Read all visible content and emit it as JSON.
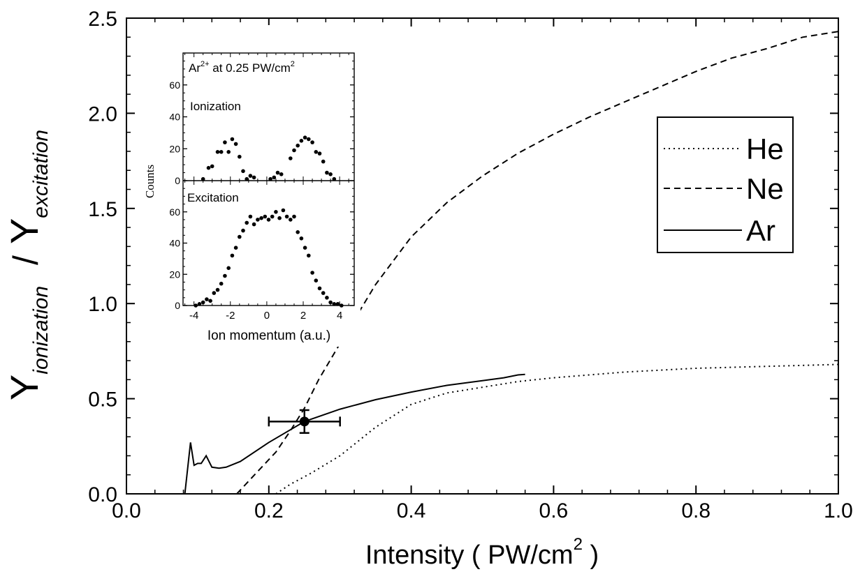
{
  "chart_data": [
    {
      "id": "main",
      "type": "line",
      "xlabel": "Intensity ( PW/cm",
      "xlabel_sup": "2",
      "xlabel_end": " )",
      "ylabel_Y1": "Y",
      "ylabel_sub1": "ionization",
      "ylabel_slash": "/",
      "ylabel_Y2": "Y",
      "ylabel_sub2": "excitation",
      "xlim": [
        0,
        1
      ],
      "ylim": [
        0,
        2.5
      ],
      "x_ticks": [
        0.0,
        0.2,
        0.4,
        0.6,
        0.8,
        1.0
      ],
      "x_tick_labels": [
        "0.0",
        "0.2",
        "0.4",
        "0.6",
        "0.8",
        "1.0"
      ],
      "y_ticks": [
        0.0,
        0.5,
        1.0,
        1.5,
        2.0,
        2.5
      ],
      "y_tick_labels": [
        "0.0",
        "0.5",
        "1.0",
        "1.5",
        "2.0",
        "2.5"
      ],
      "legend_position": "right",
      "series": [
        {
          "name": "He",
          "style": "dotted",
          "points": [
            [
              0.21,
              0
            ],
            [
              0.23,
              0.05
            ],
            [
              0.26,
              0.11
            ],
            [
              0.3,
              0.2
            ],
            [
              0.35,
              0.35
            ],
            [
              0.4,
              0.47
            ],
            [
              0.45,
              0.53
            ],
            [
              0.5,
              0.56
            ],
            [
              0.55,
              0.59
            ],
            [
              0.6,
              0.61
            ],
            [
              0.7,
              0.64
            ],
            [
              0.8,
              0.66
            ],
            [
              0.9,
              0.67
            ],
            [
              1.0,
              0.68
            ]
          ]
        },
        {
          "name": "Ne",
          "style": "dashed",
          "points": [
            [
              0.155,
              0
            ],
            [
              0.18,
              0.1
            ],
            [
              0.21,
              0.22
            ],
            [
              0.23,
              0.33
            ],
            [
              0.25,
              0.45
            ],
            [
              0.27,
              0.6
            ],
            [
              0.3,
              0.79
            ],
            [
              0.35,
              1.1
            ],
            [
              0.4,
              1.35
            ],
            [
              0.45,
              1.53
            ],
            [
              0.5,
              1.67
            ],
            [
              0.55,
              1.79
            ],
            [
              0.6,
              1.89
            ],
            [
              0.65,
              1.98
            ],
            [
              0.7,
              2.06
            ],
            [
              0.75,
              2.14
            ],
            [
              0.8,
              2.22
            ],
            [
              0.85,
              2.29
            ],
            [
              0.9,
              2.34
            ],
            [
              0.95,
              2.4
            ],
            [
              1.0,
              2.43
            ]
          ]
        },
        {
          "name": "Ar",
          "style": "solid",
          "points": [
            [
              0.082,
              0
            ],
            [
              0.09,
              0.27
            ],
            [
              0.095,
              0.15
            ],
            [
              0.1,
              0.16
            ],
            [
              0.105,
              0.16
            ],
            [
              0.112,
              0.2
            ],
            [
              0.12,
              0.14
            ],
            [
              0.13,
              0.135
            ],
            [
              0.14,
              0.14
            ],
            [
              0.16,
              0.17
            ],
            [
              0.2,
              0.27
            ],
            [
              0.25,
              0.38
            ],
            [
              0.3,
              0.445
            ],
            [
              0.35,
              0.495
            ],
            [
              0.4,
              0.535
            ],
            [
              0.45,
              0.57
            ],
            [
              0.5,
              0.595
            ],
            [
              0.53,
              0.61
            ],
            [
              0.55,
              0.625
            ],
            [
              0.56,
              0.628
            ]
          ]
        }
      ],
      "errorbar_point": {
        "x": 0.25,
        "y": 0.38,
        "xerr": 0.05,
        "yerr": 0.06
      }
    },
    {
      "id": "inset",
      "type": "scatter",
      "annotation_base": "Ar",
      "annotation_sup": "2+",
      "annotation_mid": " at  0.25 PW/cm",
      "annotation_sup2": "2",
      "ylabel": "Counts",
      "xlabel": "Ion momentum (a.u.)",
      "xlim": [
        -4.6,
        4.8
      ],
      "x_ticks": [
        -4,
        -2,
        0,
        2,
        4
      ],
      "x_tick_labels": [
        "-4",
        "-2",
        "0",
        "2",
        "4"
      ],
      "panels": [
        {
          "name": "Ionization",
          "ylim": [
            0,
            80
          ],
          "y_ticks": [
            0,
            20,
            40,
            60
          ],
          "y_tick_labels": [
            "0",
            "20",
            "40",
            "60"
          ],
          "points": [
            [
              -3.5,
              1
            ],
            [
              -3.2,
              8
            ],
            [
              -3.0,
              9
            ],
            [
              -2.7,
              18
            ],
            [
              -2.5,
              18
            ],
            [
              -2.3,
              24
            ],
            [
              -2.1,
              18
            ],
            [
              -1.9,
              26
            ],
            [
              -1.7,
              23
            ],
            [
              -1.5,
              15
            ],
            [
              -1.3,
              6
            ],
            [
              -1.1,
              1
            ],
            [
              -0.9,
              3
            ],
            [
              -0.7,
              2
            ],
            [
              0.2,
              1
            ],
            [
              0.4,
              2
            ],
            [
              0.6,
              5
            ],
            [
              0.8,
              4
            ],
            [
              1.3,
              14
            ],
            [
              1.5,
              19
            ],
            [
              1.7,
              22
            ],
            [
              1.9,
              25
            ],
            [
              2.1,
              27
            ],
            [
              2.3,
              26
            ],
            [
              2.5,
              24
            ],
            [
              2.7,
              18
            ],
            [
              2.9,
              17
            ],
            [
              3.1,
              12
            ],
            [
              3.3,
              5
            ],
            [
              3.5,
              4
            ],
            [
              3.7,
              1
            ]
          ]
        },
        {
          "name": "Excitation",
          "ylim": [
            0,
            80
          ],
          "y_ticks": [
            0,
            20,
            40,
            60
          ],
          "y_tick_labels": [
            "0",
            "20",
            "40",
            "60"
          ],
          "points": [
            [
              -3.9,
              0
            ],
            [
              -3.7,
              1
            ],
            [
              -3.5,
              2
            ],
            [
              -3.3,
              4
            ],
            [
              -3.1,
              3
            ],
            [
              -2.9,
              8
            ],
            [
              -2.7,
              10
            ],
            [
              -2.5,
              14
            ],
            [
              -2.3,
              19
            ],
            [
              -2.1,
              24
            ],
            [
              -1.9,
              32
            ],
            [
              -1.7,
              37
            ],
            [
              -1.5,
              44
            ],
            [
              -1.3,
              48
            ],
            [
              -1.1,
              53
            ],
            [
              -0.9,
              57
            ],
            [
              -0.7,
              52
            ],
            [
              -0.5,
              55
            ],
            [
              -0.3,
              56
            ],
            [
              -0.1,
              57
            ],
            [
              0.1,
              55
            ],
            [
              0.3,
              57
            ],
            [
              0.5,
              60
            ],
            [
              0.7,
              56
            ],
            [
              0.9,
              61
            ],
            [
              1.1,
              57
            ],
            [
              1.3,
              55
            ],
            [
              1.5,
              57
            ],
            [
              1.7,
              47
            ],
            [
              1.9,
              43
            ],
            [
              2.1,
              37
            ],
            [
              2.3,
              32
            ],
            [
              2.5,
              21
            ],
            [
              2.7,
              16
            ],
            [
              2.9,
              11
            ],
            [
              3.1,
              8
            ],
            [
              3.3,
              5
            ],
            [
              3.5,
              2
            ],
            [
              3.7,
              1
            ],
            [
              3.9,
              1
            ],
            [
              4.1,
              0
            ]
          ]
        }
      ]
    }
  ]
}
